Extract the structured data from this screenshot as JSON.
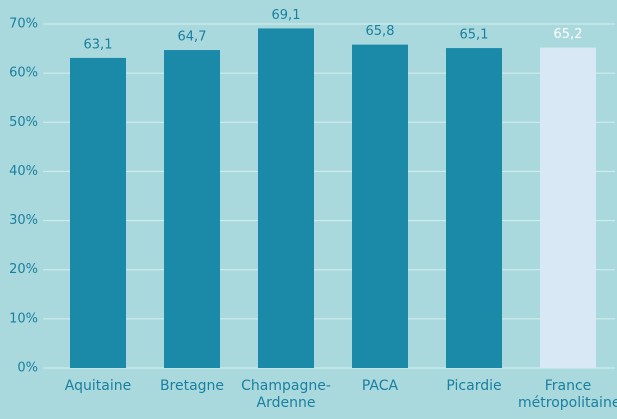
{
  "chart_data": {
    "type": "bar",
    "categories": [
      "Aquitaine",
      "Bretagne",
      "Champagne-Ardenne",
      "PACA",
      "Picardie",
      "France métropolitaine"
    ],
    "values": [
      63.1,
      64.7,
      69.1,
      65.8,
      65.1,
      65.2
    ],
    "value_labels": [
      "63,1",
      "64,7",
      "69,1",
      "65,8",
      "65,1",
      "65,2"
    ],
    "colors": [
      "#1a8aa8",
      "#1a8aa8",
      "#1a8aa8",
      "#1a8aa8",
      "#1a8aa8",
      "#d8e8f4"
    ],
    "label_colors": [
      "#1a7fa0",
      "#1a7fa0",
      "#1a7fa0",
      "#1a7fa0",
      "#1a7fa0",
      "#ffffff"
    ],
    "ylim": [
      0,
      70
    ],
    "yticks": [
      {
        "value": 0,
        "label": "0%"
      },
      {
        "value": 10,
        "label": "10%"
      },
      {
        "value": 20,
        "label": "20%"
      },
      {
        "value": 30,
        "label": "30%"
      },
      {
        "value": 40,
        "label": "40%"
      },
      {
        "value": 50,
        "label": "50%"
      },
      {
        "value": 60,
        "label": "60%"
      },
      {
        "value": 70,
        "label": "70%"
      }
    ],
    "grid": true
  }
}
